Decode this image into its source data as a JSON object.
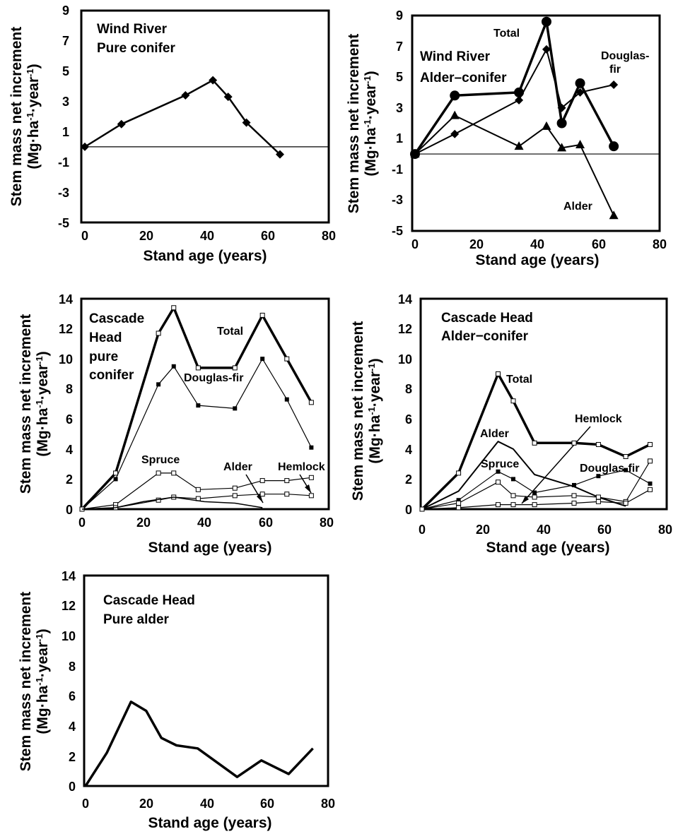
{
  "chart_data": [
    {
      "type": "line",
      "annotations": [
        "Wind River",
        "Pure conifer"
      ],
      "xlabel": "Stand age (years)",
      "ylabel": "Stem mass net increment",
      "ylabel2": "(Mg·ha-1·year-1)",
      "xlim": [
        0,
        80
      ],
      "ylim": [
        -5,
        9
      ],
      "xticks": [
        "0",
        "20",
        "40",
        "60",
        "80"
      ],
      "yticks": [
        "9",
        "7",
        "5",
        "3",
        "1",
        "-1",
        "-3",
        "-5"
      ],
      "series": [
        {
          "x": [
            0,
            12,
            33,
            42,
            47,
            53,
            64
          ],
          "y": [
            0.0,
            1.5,
            3.4,
            4.4,
            3.3,
            1.6,
            -0.5
          ],
          "marker": "diamond",
          "width": 2.5
        }
      ]
    },
    {
      "type": "line",
      "annotations": [
        "Wind River",
        "Alder–conifer"
      ],
      "labels": {
        "total": "Total",
        "douglas": "Douglas-",
        "douglas2": "fir",
        "alder": "Alder"
      },
      "xlabel": "Stand age (years)",
      "ylabel": "Stem mass net increment",
      "ylabel2": "(Mg·ha-1·year-1)",
      "xlim": [
        0,
        80
      ],
      "ylim": [
        -5,
        9
      ],
      "xticks": [
        "0",
        "20",
        "40",
        "60",
        "80"
      ],
      "yticks": [
        "9",
        "7",
        "5",
        "3",
        "1",
        "-1",
        "-3",
        "-5"
      ],
      "series": [
        {
          "name": "Total",
          "x": [
            0,
            13,
            34,
            43,
            48,
            54,
            65
          ],
          "y": [
            0.0,
            3.8,
            4.0,
            8.6,
            2.0,
            4.6,
            0.5
          ],
          "marker": "circle",
          "width": 3.5
        },
        {
          "name": "Douglas-fir",
          "x": [
            0,
            13,
            34,
            43,
            48,
            54,
            65
          ],
          "y": [
            0.0,
            1.3,
            3.5,
            6.8,
            3.0,
            4.0,
            4.5
          ],
          "marker": "diamond",
          "width": 2
        },
        {
          "name": "Alder",
          "x": [
            0,
            13,
            34,
            43,
            48,
            54,
            65
          ],
          "y": [
            0.0,
            2.5,
            0.5,
            1.8,
            0.4,
            0.6,
            -4.0
          ],
          "marker": "triangle",
          "width": 2
        }
      ]
    },
    {
      "type": "line",
      "annotations": [
        "Cascade",
        "Head",
        "pure",
        "conifer"
      ],
      "labels": {
        "total": "Total",
        "douglas": "Douglas-fir",
        "spruce": "Spruce",
        "alder": "Alder",
        "hemlock": "Hemlock"
      },
      "xlabel": "Stand age (years)",
      "ylabel": "Stem mass net increment",
      "ylabel2": "(Mg·ha-1·year-1)",
      "xlim": [
        0,
        80
      ],
      "ylim": [
        0,
        14
      ],
      "xticks": [
        "0",
        "20",
        "40",
        "60",
        "80"
      ],
      "yticks": [
        "14",
        "12",
        "10",
        "8",
        "6",
        "4",
        "2",
        "0"
      ],
      "series": [
        {
          "name": "Total",
          "x": [
            0,
            11,
            25,
            30,
            38,
            50,
            59,
            67,
            75
          ],
          "y": [
            0,
            2.4,
            11.7,
            13.4,
            9.4,
            9.4,
            12.9,
            10.0,
            7.1
          ],
          "marker": "square-open",
          "width": 3.5
        },
        {
          "name": "Douglas-fir",
          "x": [
            0,
            11,
            25,
            30,
            38,
            50,
            59,
            67,
            75
          ],
          "y": [
            0,
            2.0,
            8.3,
            9.5,
            6.9,
            6.7,
            10.0,
            7.3,
            4.1
          ],
          "marker": "square",
          "width": 1.2
        },
        {
          "name": "Spruce",
          "x": [
            0,
            11,
            25,
            30,
            38,
            50,
            59,
            67,
            75
          ],
          "y": [
            0,
            0.3,
            2.4,
            2.4,
            1.3,
            1.4,
            1.9,
            1.9,
            2.1
          ],
          "marker": "square-open",
          "width": 1.2
        },
        {
          "name": "Hemlock",
          "x": [
            0,
            11,
            25,
            30,
            38,
            50,
            59,
            67,
            75
          ],
          "y": [
            0,
            0.1,
            0.6,
            0.8,
            0.7,
            0.9,
            1.0,
            1.0,
            0.9
          ],
          "marker": "square-open",
          "width": 1.2
        },
        {
          "name": "Alder",
          "x": [
            0,
            11,
            20,
            30,
            40,
            50,
            59
          ],
          "y": [
            0,
            0.1,
            0.5,
            0.8,
            0.5,
            0.4,
            0.1
          ],
          "marker": "none",
          "width": 1.5
        }
      ]
    },
    {
      "type": "line",
      "annotations": [
        "Cascade Head",
        "Alder−conifer"
      ],
      "labels": {
        "total": "Total",
        "alder": "Alder",
        "spruce": "Spruce",
        "hemlock": "Hemlock",
        "douglas": "Douglas-fir"
      },
      "xlabel": "Stand age (years)",
      "ylabel": "Stem mass net increment",
      "ylabel2": "(Mg·ha-1·year-1)",
      "xlim": [
        0,
        80
      ],
      "ylim": [
        0,
        14
      ],
      "xticks": [
        "0",
        "20",
        "40",
        "60",
        "80"
      ],
      "yticks": [
        "14",
        "12",
        "10",
        "8",
        "6",
        "4",
        "2",
        "0"
      ],
      "series": [
        {
          "name": "Total",
          "x": [
            0,
            12,
            25,
            30,
            37,
            50,
            58,
            67,
            75
          ],
          "y": [
            0,
            2.4,
            9.0,
            7.2,
            4.4,
            4.4,
            4.3,
            3.5,
            4.3
          ],
          "marker": "square-open",
          "width": 3.5
        },
        {
          "name": "Alder",
          "x": [
            0,
            12,
            25,
            30,
            37,
            50,
            58,
            67
          ],
          "y": [
            0,
            1.2,
            4.5,
            4.0,
            2.3,
            1.5,
            0.8,
            0.2
          ],
          "marker": "none",
          "width": 2
        },
        {
          "name": "Spruce",
          "x": [
            0,
            12,
            25,
            30,
            37,
            50,
            58,
            67,
            75
          ],
          "y": [
            0,
            0.6,
            2.5,
            2.0,
            1.1,
            1.6,
            2.2,
            2.6,
            1.7
          ],
          "marker": "square",
          "width": 1.2
        },
        {
          "name": "Douglas-fir",
          "x": [
            0,
            12,
            25,
            30,
            37,
            50,
            58,
            67,
            75
          ],
          "y": [
            0,
            0.4,
            1.8,
            0.9,
            0.8,
            0.9,
            0.8,
            0.5,
            3.2
          ],
          "marker": "square-open",
          "width": 1.2
        },
        {
          "name": "Hemlock",
          "x": [
            0,
            12,
            25,
            30,
            37,
            50,
            58,
            67,
            75
          ],
          "y": [
            0,
            0.1,
            0.3,
            0.3,
            0.3,
            0.4,
            0.5,
            0.4,
            1.3
          ],
          "marker": "square-open",
          "width": 1.2
        }
      ]
    },
    {
      "type": "line",
      "annotations": [
        "Cascade Head",
        "Pure alder"
      ],
      "xlabel": "Stand age (years)",
      "ylabel": "Stem mass net increment",
      "ylabel2": "(Mg·ha-1·year-1)",
      "xlim": [
        0,
        80
      ],
      "ylim": [
        0,
        14
      ],
      "xticks": [
        "0",
        "20",
        "40",
        "60",
        "80"
      ],
      "yticks": [
        "14",
        "12",
        "10",
        "8",
        "6",
        "4",
        "2",
        "0"
      ],
      "series": [
        {
          "x": [
            0,
            7,
            15,
            20,
            25,
            30,
            37,
            50,
            58,
            67,
            75
          ],
          "y": [
            0,
            2.2,
            5.6,
            5.0,
            3.2,
            2.7,
            2.5,
            0.6,
            1.7,
            0.8,
            2.5
          ],
          "marker": "none",
          "width": 3.5
        }
      ]
    }
  ]
}
